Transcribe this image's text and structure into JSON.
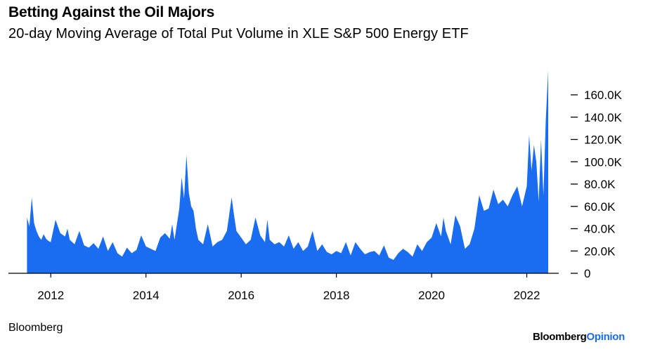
{
  "title": "Betting Against the Oil Majors",
  "subtitle": "20-day Moving Average of Total Put Volume in XLE S&P 500 Energy ETF",
  "source": "Bloomberg",
  "logo": {
    "part1": "Bloomberg",
    "part2": "Opinion"
  },
  "colors": {
    "area": "#1a6cf0",
    "axis": "#000000",
    "logo_accent": "#1a6cf0"
  },
  "chart_data": {
    "type": "area",
    "title": "Betting Against the Oil Majors",
    "subtitle": "20-day Moving Average of Total Put Volume in XLE S&P 500 Energy ETF",
    "xlabel": "",
    "ylabel": "",
    "xlim": [
      2011.45,
      2022.45
    ],
    "ylim": [
      0,
      170000
    ],
    "x_ticks": [
      2012,
      2014,
      2016,
      2018,
      2020,
      2022
    ],
    "x_tick_labels": [
      "2012",
      "2014",
      "2016",
      "2018",
      "2020",
      "2022"
    ],
    "y_ticks": [
      0,
      20000,
      40000,
      60000,
      80000,
      100000,
      120000,
      140000,
      160000
    ],
    "y_tick_labels": [
      "0",
      "20.0K",
      "40.0K",
      "60.0K",
      "80.0K",
      "100.0K",
      "120.0K",
      "140.0K",
      "160.0K"
    ],
    "y_axis_side": "right",
    "grid": false,
    "legend": false,
    "series": [
      {
        "x": [
          2011.5,
          2011.55,
          2011.6,
          2011.65,
          2011.7,
          2011.75,
          2011.8,
          2011.85,
          2011.9,
          2011.95,
          2012.0,
          2012.1,
          2012.2,
          2012.3,
          2012.35,
          2012.4,
          2012.5,
          2012.6,
          2012.7,
          2012.8,
          2012.9,
          2013.0,
          2013.1,
          2013.2,
          2013.3,
          2013.4,
          2013.5,
          2013.6,
          2013.7,
          2013.8,
          2013.9,
          2014.0,
          2014.1,
          2014.2,
          2014.3,
          2014.4,
          2014.5,
          2014.55,
          2014.6,
          2014.7,
          2014.75,
          2014.8,
          2014.85,
          2014.9,
          2014.95,
          2015.0,
          2015.05,
          2015.1,
          2015.2,
          2015.3,
          2015.4,
          2015.5,
          2015.6,
          2015.7,
          2015.8,
          2015.85,
          2015.9,
          2016.0,
          2016.1,
          2016.2,
          2016.3,
          2016.4,
          2016.5,
          2016.55,
          2016.6,
          2016.7,
          2016.8,
          2016.9,
          2017.0,
          2017.1,
          2017.2,
          2017.3,
          2017.4,
          2017.5,
          2017.6,
          2017.7,
          2017.8,
          2017.9,
          2018.0,
          2018.1,
          2018.2,
          2018.3,
          2018.4,
          2018.5,
          2018.6,
          2018.7,
          2018.8,
          2018.9,
          2019.0,
          2019.1,
          2019.2,
          2019.3,
          2019.4,
          2019.5,
          2019.6,
          2019.7,
          2019.8,
          2019.9,
          2020.0,
          2020.1,
          2020.2,
          2020.25,
          2020.3,
          2020.4,
          2020.5,
          2020.6,
          2020.7,
          2020.8,
          2020.9,
          2021.0,
          2021.1,
          2021.2,
          2021.3,
          2021.4,
          2021.5,
          2021.6,
          2021.7,
          2021.8,
          2021.9,
          2022.0,
          2022.05,
          2022.1,
          2022.15,
          2022.2,
          2022.25,
          2022.3,
          2022.35,
          2022.4,
          2022.45
        ],
        "values": [
          50000,
          42000,
          68000,
          45000,
          38000,
          33000,
          30000,
          35000,
          31000,
          29000,
          28000,
          48000,
          36000,
          33000,
          40000,
          30000,
          26000,
          38000,
          25000,
          23000,
          27000,
          22000,
          33000,
          20000,
          28000,
          18000,
          15000,
          23000,
          18000,
          21000,
          34000,
          24000,
          22000,
          20000,
          32000,
          36000,
          31000,
          44000,
          30000,
          58000,
          86000,
          67000,
          106000,
          72000,
          60000,
          56000,
          40000,
          30000,
          26000,
          44000,
          24000,
          28000,
          30000,
          38000,
          68000,
          52000,
          38000,
          32000,
          26000,
          30000,
          50000,
          34000,
          28000,
          48000,
          30000,
          26000,
          28000,
          24000,
          34000,
          22000,
          28000,
          20000,
          24000,
          38000,
          20000,
          26000,
          19000,
          17000,
          20000,
          18000,
          28000,
          16000,
          28000,
          22000,
          17000,
          19000,
          20000,
          16000,
          25000,
          14000,
          12000,
          18000,
          22000,
          19000,
          15000,
          26000,
          20000,
          28000,
          32000,
          45000,
          33000,
          50000,
          38000,
          26000,
          52000,
          42000,
          22000,
          26000,
          40000,
          70000,
          56000,
          58000,
          75000,
          62000,
          66000,
          60000,
          70000,
          78000,
          60000,
          78000,
          124000,
          92000,
          115000,
          100000,
          64000,
          120000,
          70000,
          138000,
          182000
        ]
      }
    ]
  }
}
